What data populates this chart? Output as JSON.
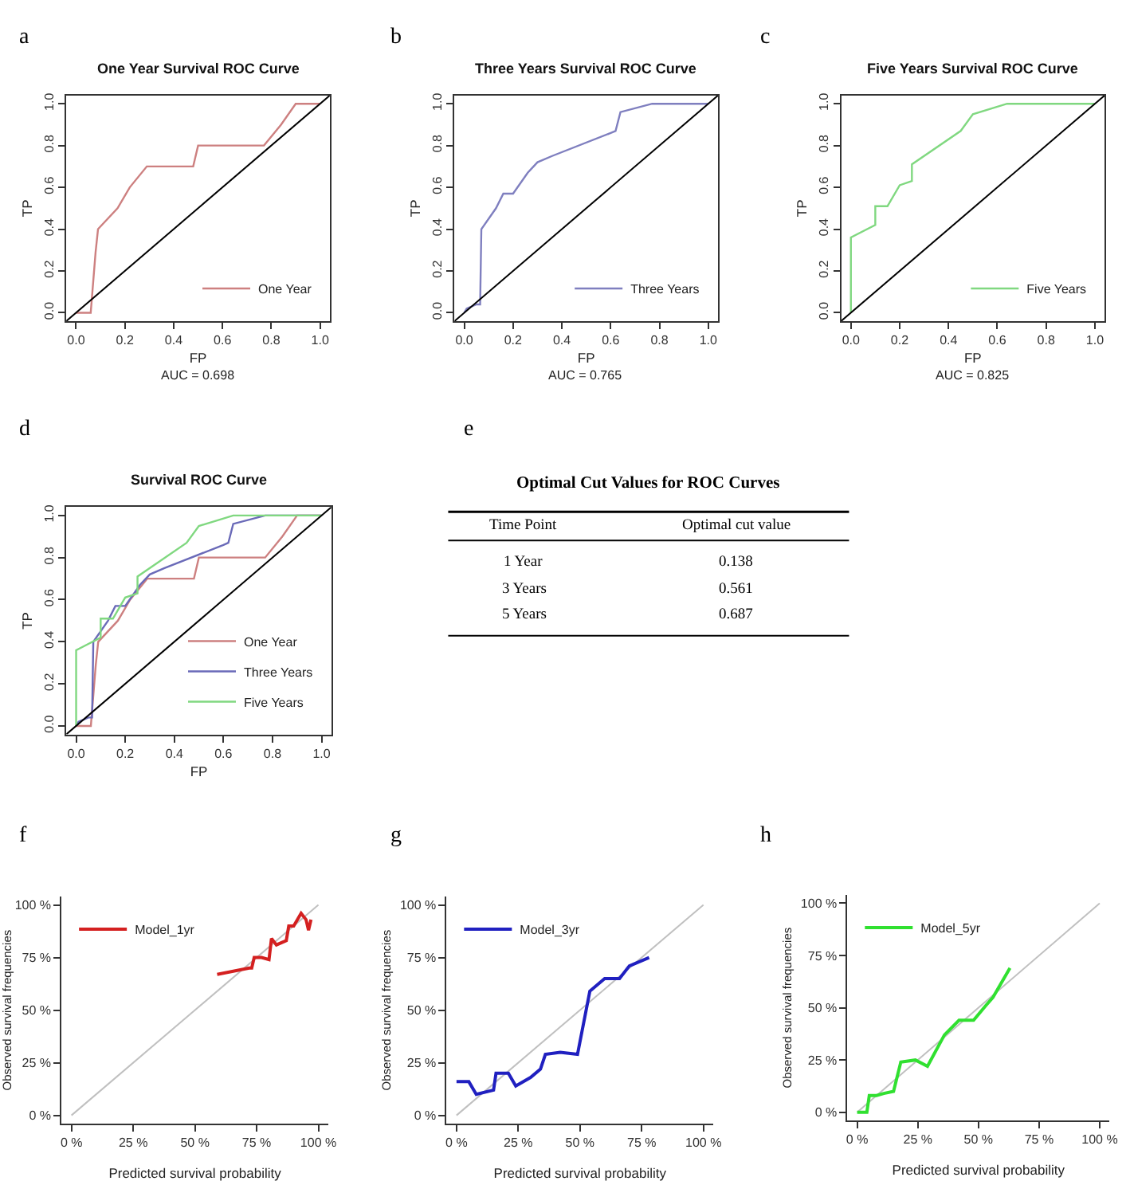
{
  "chart_data": [
    {
      "type": "line",
      "title": "One Year Survival ROC Curve",
      "xlabel": "FP",
      "ylabel": "TP",
      "annotations": [
        "a",
        "AUC = 0.698"
      ],
      "xlim": [
        -0.04,
        1.04
      ],
      "ylim": [
        -0.04,
        1.04
      ],
      "xticks": [
        {
          "value": 0,
          "label": "0.0"
        },
        {
          "value": 0.2,
          "label": "0.2"
        },
        {
          "value": 0.4,
          "label": "0.4"
        },
        {
          "value": 0.6,
          "label": "0.6"
        },
        {
          "value": 0.8,
          "label": "0.8"
        },
        {
          "value": 1,
          "label": "1.0"
        }
      ],
      "yticks": [
        {
          "value": 0,
          "label": "0.0"
        },
        {
          "value": 0.2,
          "label": "0.2"
        },
        {
          "value": 0.4,
          "label": "0.4"
        },
        {
          "value": 0.6,
          "label": "0.6"
        },
        {
          "value": 0.8,
          "label": "0.8"
        },
        {
          "value": 1,
          "label": "1.0"
        }
      ],
      "legend": "bottom right",
      "grid": false,
      "line_style": "solid",
      "series": [
        {
          "name": "One Year",
          "color": "#cd8080",
          "x": [
            0,
            0.06,
            0.08,
            0.09,
            0.17,
            0.22,
            0.29,
            0.48,
            0.5,
            0.77,
            0.84,
            0.9,
            1
          ],
          "values": [
            0,
            0,
            0.29,
            0.4,
            0.5,
            0.6,
            0.7,
            0.7,
            0.8,
            0.8,
            0.9,
            1,
            1
          ]
        },
        {
          "color": "#000000",
          "x": [
            -0.04,
            1.04
          ],
          "values": [
            -0.04,
            1.04
          ]
        }
      ]
    },
    {
      "type": "line",
      "title": "Three Years Survival ROC Curve",
      "xlabel": "FP",
      "ylabel": "TP",
      "annotations": [
        "b",
        "AUC = 0.765"
      ],
      "xlim": [
        -0.04,
        1.04
      ],
      "ylim": [
        -0.04,
        1.04
      ],
      "xticks": [
        {
          "value": 0,
          "label": "0.0"
        },
        {
          "value": 0.2,
          "label": "0.2"
        },
        {
          "value": 0.4,
          "label": "0.4"
        },
        {
          "value": 0.6,
          "label": "0.6"
        },
        {
          "value": 0.8,
          "label": "0.8"
        },
        {
          "value": 1,
          "label": "1.0"
        }
      ],
      "yticks": [
        {
          "value": 0,
          "label": "0.0"
        },
        {
          "value": 0.2,
          "label": "0.2"
        },
        {
          "value": 0.4,
          "label": "0.4"
        },
        {
          "value": 0.6,
          "label": "0.6"
        },
        {
          "value": 0.8,
          "label": "0.8"
        },
        {
          "value": 1,
          "label": "1.0"
        }
      ],
      "legend": "bottom right",
      "grid": false,
      "line_style": "solid",
      "series": [
        {
          "name": "Three Years",
          "color": "#7f7fbf",
          "x": [
            0,
            0.01,
            0.05,
            0.065,
            0.07,
            0.13,
            0.16,
            0.2,
            0.26,
            0.3,
            0.36,
            0.6,
            0.62,
            0.64,
            0.77,
            1
          ],
          "values": [
            0,
            0.02,
            0.04,
            0.04,
            0.4,
            0.5,
            0.57,
            0.57,
            0.67,
            0.72,
            0.75,
            0.86,
            0.87,
            0.96,
            1,
            1
          ]
        },
        {
          "color": "#000000",
          "x": [
            -0.04,
            1.04
          ],
          "values": [
            -0.04,
            1.04
          ]
        }
      ]
    },
    {
      "type": "line",
      "title": "Five Years Survival ROC Curve",
      "xlabel": "FP",
      "ylabel": "TP",
      "annotations": [
        "c",
        "AUC = 0.825"
      ],
      "xlim": [
        -0.04,
        1.04
      ],
      "ylim": [
        -0.04,
        1.04
      ],
      "xticks": [
        {
          "value": 0,
          "label": "0.0"
        },
        {
          "value": 0.2,
          "label": "0.2"
        },
        {
          "value": 0.4,
          "label": "0.4"
        },
        {
          "value": 0.6,
          "label": "0.6"
        },
        {
          "value": 0.8,
          "label": "0.8"
        },
        {
          "value": 1,
          "label": "1.0"
        }
      ],
      "yticks": [
        {
          "value": 0,
          "label": "0.0"
        },
        {
          "value": 0.2,
          "label": "0.2"
        },
        {
          "value": 0.4,
          "label": "0.4"
        },
        {
          "value": 0.6,
          "label": "0.6"
        },
        {
          "value": 0.8,
          "label": "0.8"
        },
        {
          "value": 1,
          "label": "1.0"
        }
      ],
      "legend": "bottom right",
      "grid": false,
      "line_style": "solid",
      "series": [
        {
          "name": "Five Years",
          "color": "#80d880",
          "x": [
            0,
            0,
            0.1,
            0.1,
            0.15,
            0.2,
            0.25,
            0.25,
            0.45,
            0.5,
            0.64,
            1
          ],
          "values": [
            0,
            0.36,
            0.42,
            0.51,
            0.51,
            0.61,
            0.63,
            0.71,
            0.87,
            0.95,
            1,
            1
          ]
        },
        {
          "color": "#000000",
          "x": [
            -0.04,
            1.04
          ],
          "values": [
            -0.04,
            1.04
          ]
        }
      ]
    },
    {
      "type": "line",
      "title": "Survival ROC Curve",
      "xlabel": "FP",
      "ylabel": "TP",
      "annotations": [
        "d"
      ],
      "xlim": [
        -0.04,
        1.04
      ],
      "ylim": [
        -0.04,
        1.04
      ],
      "xticks": [
        {
          "value": 0,
          "label": "0.0"
        },
        {
          "value": 0.2,
          "label": "0.2"
        },
        {
          "value": 0.4,
          "label": "0.4"
        },
        {
          "value": 0.6,
          "label": "0.6"
        },
        {
          "value": 0.8,
          "label": "0.8"
        },
        {
          "value": 1,
          "label": "1.0"
        }
      ],
      "yticks": [
        {
          "value": 0,
          "label": "0.0"
        },
        {
          "value": 0.2,
          "label": "0.2"
        },
        {
          "value": 0.4,
          "label": "0.4"
        },
        {
          "value": 0.6,
          "label": "0.6"
        },
        {
          "value": 0.8,
          "label": "0.8"
        },
        {
          "value": 1,
          "label": "1.0"
        }
      ],
      "legend": "bottom right",
      "grid": false,
      "line_style": "solid",
      "series": [
        {
          "name": "One Year",
          "color": "#cd8080",
          "x": [
            0,
            0.06,
            0.08,
            0.09,
            0.17,
            0.22,
            0.29,
            0.48,
            0.5,
            0.77,
            0.84,
            0.9,
            1
          ],
          "values": [
            0,
            0,
            0.29,
            0.4,
            0.5,
            0.6,
            0.7,
            0.7,
            0.8,
            0.8,
            0.9,
            1,
            1
          ]
        },
        {
          "name": "Three Years",
          "color": "#6a6ab8",
          "x": [
            0,
            0.01,
            0.05,
            0.065,
            0.07,
            0.13,
            0.16,
            0.2,
            0.26,
            0.3,
            0.36,
            0.6,
            0.62,
            0.64,
            0.77,
            1
          ],
          "values": [
            0,
            0.02,
            0.04,
            0.04,
            0.4,
            0.5,
            0.57,
            0.57,
            0.67,
            0.72,
            0.75,
            0.86,
            0.87,
            0.96,
            1,
            1
          ]
        },
        {
          "name": "Five Years",
          "color": "#80d880",
          "x": [
            0,
            0,
            0.1,
            0.1,
            0.15,
            0.2,
            0.25,
            0.25,
            0.45,
            0.5,
            0.64,
            1
          ],
          "values": [
            0,
            0.36,
            0.42,
            0.51,
            0.51,
            0.61,
            0.63,
            0.71,
            0.87,
            0.95,
            1,
            1
          ]
        },
        {
          "color": "#000000",
          "x": [
            -0.04,
            1.04
          ],
          "values": [
            -0.04,
            1.04
          ]
        }
      ]
    },
    {
      "type": "other",
      "title": "Optimal Cut Values for ROC Curves",
      "annotations": [
        "e",
        "Time Point",
        "Optimal cut value",
        "1 Year",
        "0.138",
        "3 Years",
        "0.561",
        "5 Years",
        "0.687"
      ]
    },
    {
      "type": "line",
      "xlabel": "Predicted survival probability",
      "ylabel": "Observed survival frequencies",
      "annotations": [
        "f"
      ],
      "xlim": [
        -4,
        104
      ],
      "ylim": [
        -4,
        104
      ],
      "xticks": [
        {
          "value": 0,
          "label": "0 %"
        },
        {
          "value": 25,
          "label": "25 %"
        },
        {
          "value": 50,
          "label": "50 %"
        },
        {
          "value": 75,
          "label": "75 %"
        },
        {
          "value": 100,
          "label": "100 %"
        }
      ],
      "yticks": [
        {
          "value": 0,
          "label": "0 %"
        },
        {
          "value": 25,
          "label": "25 %"
        },
        {
          "value": 50,
          "label": "50 %"
        },
        {
          "value": 75,
          "label": "75 %"
        },
        {
          "value": 100,
          "label": "100 %"
        }
      ],
      "legend": "top left",
      "grid": false,
      "line_style": "solid",
      "series": [
        {
          "color": "#c0c0c0",
          "x": [
            0,
            100
          ],
          "values": [
            0,
            100
          ]
        },
        {
          "name": "Model_1yr",
          "color": "#d42020",
          "x": [
            59,
            72,
            73,
            74,
            77,
            80,
            81,
            83,
            87,
            88,
            90,
            93,
            95,
            96,
            97
          ],
          "values": [
            67,
            70,
            70,
            75,
            75,
            74,
            84,
            81,
            83,
            90,
            90,
            96,
            93,
            88,
            93
          ]
        }
      ]
    },
    {
      "type": "line",
      "xlabel": "Predicted survival probability",
      "ylabel": "Observed survival frequencies",
      "annotations": [
        "g"
      ],
      "xlim": [
        -4,
        104
      ],
      "ylim": [
        -4,
        104
      ],
      "xticks": [
        {
          "value": 0,
          "label": "0 %"
        },
        {
          "value": 25,
          "label": "25 %"
        },
        {
          "value": 50,
          "label": "50 %"
        },
        {
          "value": 75,
          "label": "75 %"
        },
        {
          "value": 100,
          "label": "100 %"
        }
      ],
      "yticks": [
        {
          "value": 0,
          "label": "0 %"
        },
        {
          "value": 25,
          "label": "25 %"
        },
        {
          "value": 50,
          "label": "50 %"
        },
        {
          "value": 75,
          "label": "75 %"
        },
        {
          "value": 100,
          "label": "100 %"
        }
      ],
      "legend": "top left",
      "grid": false,
      "line_style": "solid",
      "series": [
        {
          "color": "#c0c0c0",
          "x": [
            0,
            100
          ],
          "values": [
            0,
            100
          ]
        },
        {
          "name": "Model_3yr",
          "color": "#2020c0",
          "x": [
            0,
            5,
            8,
            15,
            16,
            21,
            24,
            30,
            34,
            36,
            42,
            49,
            54,
            60,
            66,
            70,
            78
          ],
          "values": [
            16,
            16,
            10,
            12,
            20,
            20,
            14,
            18,
            22,
            29,
            30,
            29,
            59,
            65,
            65,
            71,
            75
          ]
        }
      ]
    },
    {
      "type": "line",
      "xlabel": "Predicted survival probability",
      "ylabel": "Observed survival frequencies",
      "annotations": [
        "h"
      ],
      "xlim": [
        -4,
        104
      ],
      "ylim": [
        -4,
        104
      ],
      "xticks": [
        {
          "value": 0,
          "label": "0 %"
        },
        {
          "value": 25,
          "label": "25 %"
        },
        {
          "value": 50,
          "label": "50 %"
        },
        {
          "value": 75,
          "label": "75 %"
        },
        {
          "value": 100,
          "label": "100 %"
        }
      ],
      "yticks": [
        {
          "value": 0,
          "label": "0 %"
        },
        {
          "value": 25,
          "label": "25 %"
        },
        {
          "value": 50,
          "label": "50 %"
        },
        {
          "value": 75,
          "label": "75 %"
        },
        {
          "value": 100,
          "label": "100 %"
        }
      ],
      "legend": "top left",
      "grid": false,
      "line_style": "solid",
      "series": [
        {
          "color": "#c0c0c0",
          "x": [
            0,
            100
          ],
          "values": [
            0,
            100
          ]
        },
        {
          "name": "Model_5yr",
          "color": "#30e030",
          "x": [
            0,
            4,
            5,
            8,
            11,
            15,
            18,
            24,
            29,
            36,
            42,
            48,
            53,
            56,
            63
          ],
          "values": [
            0,
            0,
            8,
            8,
            9,
            10,
            24,
            25,
            22,
            37,
            44,
            44,
            51,
            55,
            69
          ]
        }
      ]
    }
  ]
}
